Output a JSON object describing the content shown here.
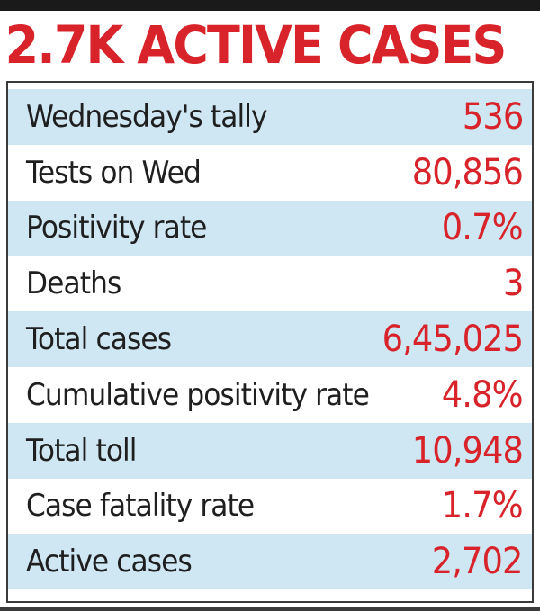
{
  "headline": "2.7K ACTIVE CASES",
  "colors": {
    "accent": "#d8232a",
    "row_shade": "#cfe6f3",
    "text": "#1f1f1f"
  },
  "rows": [
    {
      "label": "Wednesday's tally",
      "value": "536"
    },
    {
      "label": "Tests on Wed",
      "value": "80,856"
    },
    {
      "label": "Positivity rate",
      "value": "0.7%"
    },
    {
      "label": "Deaths",
      "value": "3"
    },
    {
      "label": "Total cases",
      "value": "6,45,025"
    },
    {
      "label": "Cumulative positivity rate",
      "value": "4.8%"
    },
    {
      "label": "Total toll",
      "value": "10,948"
    },
    {
      "label": "Case fatality rate",
      "value": "1.7%"
    },
    {
      "label": "Active cases",
      "value": "2,702"
    }
  ]
}
